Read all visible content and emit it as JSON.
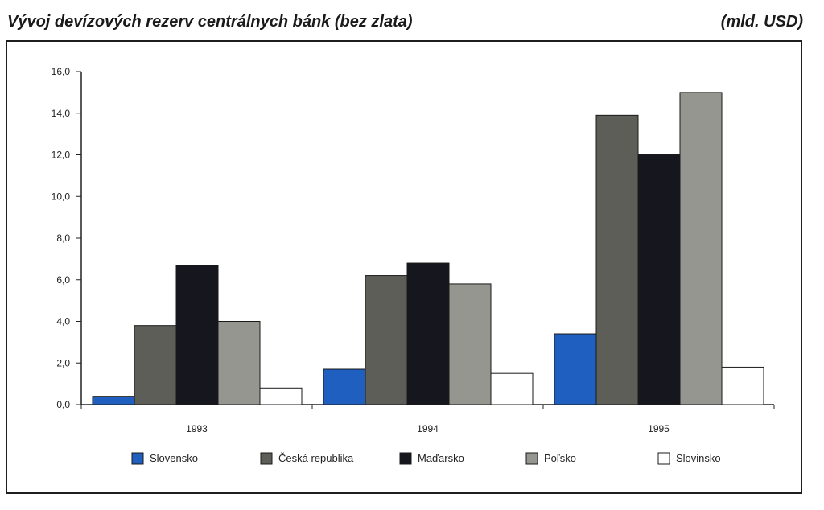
{
  "title": "Vývoj devízových rezerv centrálnych bánk (bez zlata)",
  "unit": "(mld. USD)",
  "chart_data": {
    "type": "bar",
    "categories": [
      "1993",
      "1994",
      "1995"
    ],
    "ylim": [
      0,
      16
    ],
    "yticks": [
      "0,0",
      "2,0",
      "4,0",
      "6,0",
      "8,0",
      "10,0",
      "12,0",
      "14,0",
      "16,0"
    ],
    "grid": false,
    "legend_position": "bottom",
    "series": [
      {
        "name": "Slovensko",
        "color": "#1f5fbf",
        "values": [
          0.4,
          1.7,
          3.4
        ]
      },
      {
        "name": "Česká republika",
        "color": "#5e5e58",
        "values": [
          3.8,
          6.2,
          13.9
        ]
      },
      {
        "name": "Maďarsko",
        "color": "#16161e",
        "values": [
          6.7,
          6.8,
          12.0
        ]
      },
      {
        "name": "Poľsko",
        "color": "#969690",
        "values": [
          4.0,
          5.8,
          15.0
        ]
      },
      {
        "name": "Slovinsko",
        "color": "#ffffff",
        "values": [
          0.8,
          1.5,
          1.8
        ]
      }
    ]
  }
}
